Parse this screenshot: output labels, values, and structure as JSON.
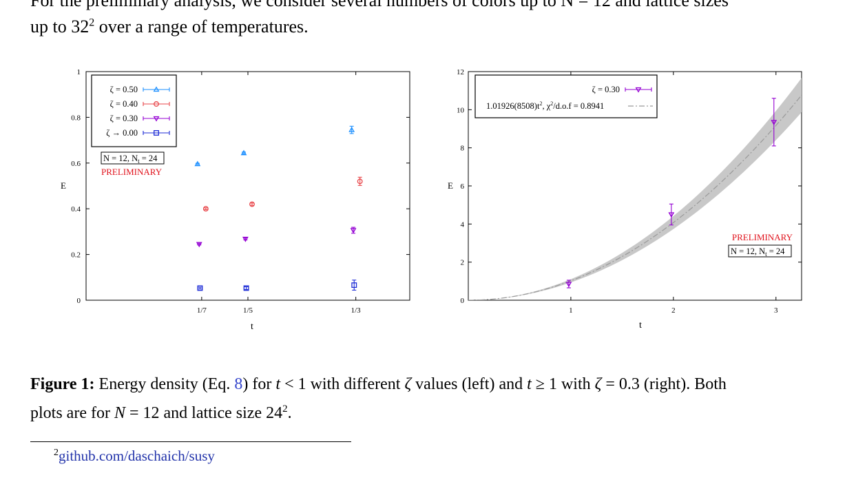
{
  "page": {
    "top_fragment": "For the preliminary analysis, we consider several numbers of colors up to N = 12 and lattice sizes",
    "intro_line_pre": "up to 32",
    "intro_sup": "2",
    "intro_line_post": " over a range of temperatures."
  },
  "caption": {
    "label": "Figure 1:",
    "text_1": " Energy density (Eq. ",
    "eq_ref": "8",
    "text_2": ") for ",
    "t": "t",
    "text_3": " < 1 with different ",
    "zeta": "ζ",
    "text_4": " values (left) and ",
    "text_5": " ≥ 1 with ",
    "text_6": " = 0.3 (right). Both",
    "line2_pre": "plots are for ",
    "N": "N",
    "line2_mid": " = 12 and lattice size 24",
    "line2_sup": "2",
    "line2_end": "."
  },
  "footnote": {
    "mark": "2",
    "link": "github.com/daschaich/susy"
  },
  "colors": {
    "z050": "#1e90ff",
    "z040": "#e8464a",
    "z030": "#9400d3",
    "z000": "#1c2bd6",
    "preliminary": "#e0101a",
    "band": "#c8c8c8",
    "fit": "#999999"
  },
  "chart_data": [
    {
      "type": "scatter",
      "xlabel": "t",
      "ylabel": "E",
      "ylim": [
        0,
        1
      ],
      "yticks": [
        "0",
        "0.2",
        "0.4",
        "0.6",
        "0.8",
        "1"
      ],
      "xticks": [
        "1/7",
        "1/5",
        "1/3"
      ],
      "x": [
        0.142857,
        0.2,
        0.333333
      ],
      "legend_position": "top-left",
      "series": [
        {
          "name": "ζ = 0.50",
          "marker": "triangle-up",
          "color": "#1e90ff",
          "points": [
            {
              "x": 0.142857,
              "y": 0.596,
              "err": 0.003
            },
            {
              "x": 0.2,
              "y": 0.644,
              "err": 0.004
            },
            {
              "x": 0.333333,
              "y": 0.745,
              "err": 0.016
            }
          ]
        },
        {
          "name": "ζ = 0.40",
          "marker": "circle",
          "color": "#e8464a",
          "points": [
            {
              "x": 0.142857,
              "y": 0.4,
              "err": 0.004
            },
            {
              "x": 0.2,
              "y": 0.42,
              "err": 0.005
            },
            {
              "x": 0.333333,
              "y": 0.52,
              "err": 0.018
            }
          ]
        },
        {
          "name": "ζ = 0.30",
          "marker": "triangle-down",
          "color": "#9400d3",
          "points": [
            {
              "x": 0.142857,
              "y": 0.245,
              "err": 0.003
            },
            {
              "x": 0.2,
              "y": 0.268,
              "err": 0.004
            },
            {
              "x": 0.333333,
              "y": 0.306,
              "err": 0.013
            }
          ]
        },
        {
          "name": "ζ → 0.00",
          "marker": "square",
          "color": "#1c2bd6",
          "points": [
            {
              "x": 0.142857,
              "y": 0.053,
              "err": 0.004
            },
            {
              "x": 0.2,
              "y": 0.053,
              "err": 0.006
            },
            {
              "x": 0.333333,
              "y": 0.066,
              "err": 0.022
            }
          ]
        }
      ],
      "annotations": {
        "box": "N = 12, N",
        "box_sub": "t",
        "box_end": " = 24",
        "preliminary": "PRELIMINARY"
      }
    },
    {
      "type": "scatter",
      "xlabel": "t",
      "ylabel": "E",
      "xlim": [
        0,
        3
      ],
      "ylim": [
        0,
        12
      ],
      "xticks": [
        "1",
        "2",
        "3"
      ],
      "yticks": [
        "0",
        "2",
        "4",
        "6",
        "8",
        "10",
        "12"
      ],
      "legend_position": "top-left",
      "series": [
        {
          "name": "ζ = 0.30",
          "marker": "triangle-down",
          "color": "#9400d3",
          "points": [
            {
              "x": 1,
              "y": 0.85,
              "err": 0.2
            },
            {
              "x": 2,
              "y": 4.5,
              "err": 0.55
            },
            {
              "x": 3,
              "y": 9.35,
              "err": 1.25
            }
          ]
        }
      ],
      "fit": {
        "label_a": "1.01926(8508)t",
        "label_sup": "2",
        "label_b": ", χ",
        "label_sup2": "2",
        "label_c": "/d.o.f = 0.8941",
        "coefficient": 1.01926,
        "coefficient_err": 0.08508,
        "form": "a*t^2"
      },
      "annotations": {
        "preliminary": "PRELIMINARY",
        "box": "N = 12, N",
        "box_sub": "t",
        "box_end": " = 24"
      }
    }
  ]
}
